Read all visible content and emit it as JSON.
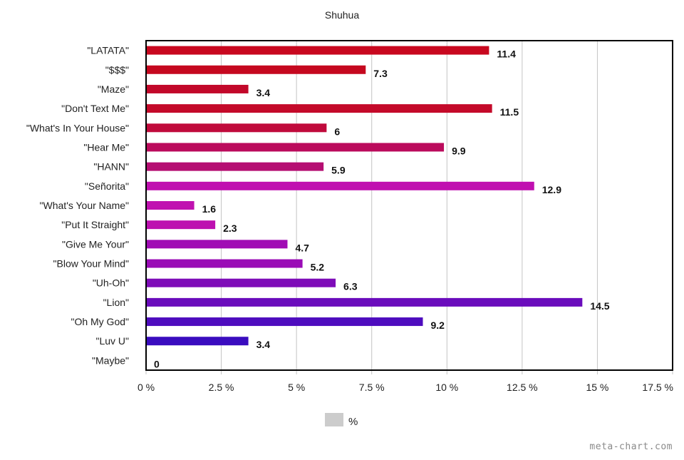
{
  "chart_data": {
    "type": "bar",
    "orientation": "horizontal",
    "title": "Shuhua",
    "categories": [
      "\"LATATA\"",
      "\"$$$\"",
      "\"Maze\"",
      "\"Don't Text Me\"",
      "\"What's In Your House\"",
      "\"Hear Me\"",
      "\"HANN\"",
      "\"Señorita\"",
      "\"What's Your Name\"",
      "\"Put It Straight\"",
      "\"Give Me Your\"",
      "\"Blow Your Mind\"",
      "\"Uh-Oh\"",
      "\"Lion\"",
      "\"Oh My God\"",
      "\"Luv U\"",
      "\"Maybe\""
    ],
    "series": [
      {
        "name": "%",
        "values": [
          11.4,
          7.3,
          3.4,
          11.5,
          6,
          9.9,
          5.9,
          12.9,
          1.6,
          2.3,
          4.7,
          5.2,
          6.3,
          14.5,
          9.2,
          3.4,
          0
        ]
      }
    ],
    "data_labels": [
      "11.4",
      "7.3",
      "3.4",
      "11.5",
      "6",
      "9.9",
      "5.9",
      "12.9",
      "1.6",
      "2.3",
      "4.7",
      "5.2",
      "6.3",
      "14.5",
      "9.2",
      "3.4",
      "0"
    ],
    "bar_colors": [
      "#c8081f",
      "#c5081f",
      "#c2082a",
      "#c40a2a",
      "#c00a3c",
      "#bb0b5c",
      "#b50e72",
      "#c010b0",
      "#c012b0",
      "#bd10b0",
      "#a00cb4",
      "#9a0cb6",
      "#7e0cb8",
      "#6a0cbc",
      "#4e0cbe",
      "#3a0cbf",
      "#3a0cbf"
    ],
    "xlim": [
      0,
      17.5
    ],
    "x_ticks": [
      0,
      2.5,
      5,
      7.5,
      10,
      12.5,
      15,
      17.5
    ],
    "x_tick_labels": [
      "0 %",
      "2.5 %",
      "5 %",
      "7.5 %",
      "10 %",
      "12.5 %",
      "15 %",
      "17.5 %"
    ],
    "xlabel": "",
    "ylabel": "",
    "grid": true,
    "legend": {
      "position": "bottom-center",
      "label": "%",
      "swatch_color": "#cccccc"
    }
  },
  "watermark": "meta-chart.com"
}
